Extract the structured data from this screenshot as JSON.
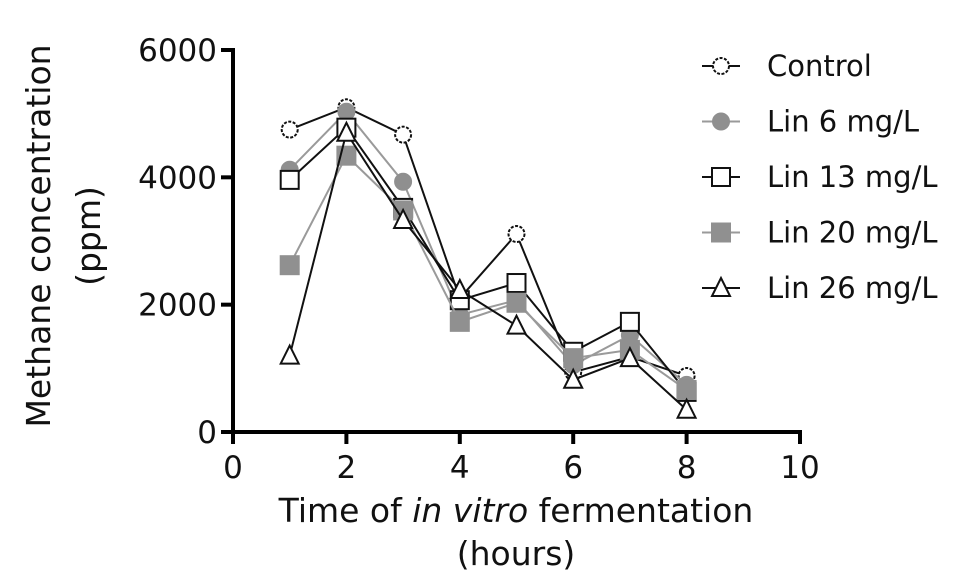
{
  "chart_data": {
    "type": "line",
    "title": "",
    "xlabel": "Time of in vitro fermentation (hours)",
    "xlabel_parts": {
      "pre": "Time of ",
      "italic": "in vitro",
      "post": " fermentation",
      "line2": "(hours)"
    },
    "ylabel": "Methane concentration (ppm)",
    "ylabel_parts": {
      "line1": "Methane concentration",
      "line2": "(ppm)"
    },
    "xlim": [
      0,
      10
    ],
    "ylim": [
      0,
      6000
    ],
    "xticks": [
      0,
      2,
      4,
      6,
      8,
      10
    ],
    "yticks": [
      0,
      2000,
      4000,
      6000
    ],
    "grid": false,
    "legend_position": "right",
    "x": [
      1,
      2,
      3,
      4,
      5,
      6,
      7,
      8
    ],
    "series": [
      {
        "name": "Control",
        "marker": "circle-open",
        "line_color": "#111111",
        "marker_fill": "#ffffff",
        "marker_stroke": "#111111",
        "values": [
          4750,
          5100,
          4670,
          2100,
          3110,
          940,
          1180,
          880
        ]
      },
      {
        "name": "Lin 6 mg/L",
        "marker": "circle-filled",
        "line_color": "#9a9a9a",
        "marker_fill": "#8f8f8f",
        "marker_stroke": "#8f8f8f",
        "values": [
          4120,
          5030,
          3930,
          1840,
          2070,
          1050,
          1520,
          740
        ]
      },
      {
        "name": "Lin 13 mg/L",
        "marker": "square-open",
        "line_color": "#111111",
        "marker_fill": "#ffffff",
        "marker_stroke": "#111111",
        "values": [
          3960,
          4780,
          3520,
          2070,
          2340,
          1260,
          1730,
          630
        ]
      },
      {
        "name": "Lin 20 mg/L",
        "marker": "square-filled",
        "line_color": "#9a9a9a",
        "marker_fill": "#909090",
        "marker_stroke": "#909090",
        "values": [
          2620,
          4340,
          3480,
          1730,
          2030,
          1160,
          1290,
          660
        ]
      },
      {
        "name": "Lin 26 mg/L",
        "marker": "triangle-open",
        "line_color": "#111111",
        "marker_fill": "#ffffff",
        "marker_stroke": "#111111",
        "values": [
          1200,
          4700,
          3330,
          2230,
          1670,
          820,
          1160,
          350
        ]
      }
    ]
  }
}
